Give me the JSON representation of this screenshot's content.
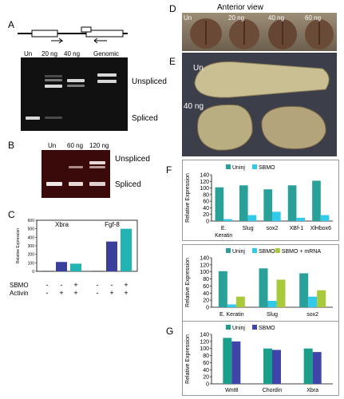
{
  "panels": {
    "A": {
      "letter": "A",
      "lanes": [
        "Un",
        "20 ng",
        "40 ng",
        "Genomic"
      ],
      "labels": {
        "unspliced": "Unspliced",
        "spliced": "Spliced"
      }
    },
    "B": {
      "letter": "B",
      "lanes": [
        "Un",
        "60 ng",
        "120 ng"
      ],
      "labels": {
        "unspliced": "Unspliced",
        "spliced": "Spliced"
      }
    },
    "C": {
      "letter": "C"
    },
    "D": {
      "letter": "D",
      "title": "Anterior view",
      "doses": [
        "Un",
        "20 ng",
        "40 ng",
        "60 ng"
      ]
    },
    "E": {
      "letter": "E",
      "labels": [
        "Un",
        "40 ng"
      ]
    },
    "F": {
      "letter": "F"
    },
    "G": {
      "letter": "G"
    }
  },
  "colors": {
    "uninj_f": "#2aa198",
    "sbmo_f": "#33c9ea",
    "mrna_f": "#a8c93a",
    "c_series1": "#3b3f9c",
    "c_series2": "#22b3b3",
    "g_series1": "#1aa08a",
    "g_series2": "#3f45a8"
  },
  "chart_data": [
    {
      "id": "C",
      "type": "bar",
      "ylabel": "Relative Expression",
      "ylim": [
        0,
        600
      ],
      "yticks": [
        0,
        100,
        200,
        300,
        400,
        500,
        600
      ],
      "groups": [
        "Xbra",
        "Fgf-8"
      ],
      "conditions": {
        "rows": [
          "SBMO",
          "Activin"
        ],
        "values": [
          [
            "-",
            "-",
            "+"
          ],
          [
            "-",
            "+",
            "+"
          ]
        ]
      },
      "series": [
        {
          "values": [
            2,
            110,
            90
          ]
        },
        {
          "values": [
            2,
            350,
            500
          ]
        }
      ]
    },
    {
      "id": "F1",
      "type": "bar",
      "categories": [
        "E. Keratin",
        "Slug",
        "sox2",
        "XBf-1",
        "XlHbox6"
      ],
      "ylabel": "Relative Expression",
      "ylim": [
        0,
        140
      ],
      "yticks": [
        0,
        20,
        40,
        60,
        80,
        100,
        120,
        140
      ],
      "legend": "top",
      "series": [
        {
          "name": "Uninj",
          "values": [
            102,
            108,
            96,
            108,
            122
          ]
        },
        {
          "name": "SBMO",
          "values": [
            6,
            18,
            28,
            10,
            18
          ]
        }
      ]
    },
    {
      "id": "F2",
      "type": "bar",
      "categories": [
        "E. Keratin",
        "Slug",
        "sox2"
      ],
      "ylabel": "Relative Expression",
      "ylim": [
        0,
        140
      ],
      "yticks": [
        0,
        20,
        40,
        60,
        80,
        100,
        120,
        140
      ],
      "legend": "top",
      "series": [
        {
          "name": "Uninj",
          "values": [
            102,
            110,
            96
          ]
        },
        {
          "name": "SBMO",
          "values": [
            8,
            18,
            30
          ]
        },
        {
          "name": "SBMO + mRNA",
          "values": [
            30,
            78,
            48
          ]
        }
      ]
    },
    {
      "id": "G",
      "type": "bar",
      "categories": [
        "Wnt8",
        "Chordin",
        "Xbra"
      ],
      "ylabel": "Relative Expression",
      "ylim": [
        0,
        140
      ],
      "yticks": [
        0,
        20,
        40,
        60,
        80,
        100,
        120,
        140
      ],
      "legend": "top",
      "series": [
        {
          "name": "Uninj",
          "values": [
            130,
            100,
            100
          ]
        },
        {
          "name": "SBMO",
          "values": [
            120,
            96,
            90
          ]
        }
      ]
    }
  ]
}
